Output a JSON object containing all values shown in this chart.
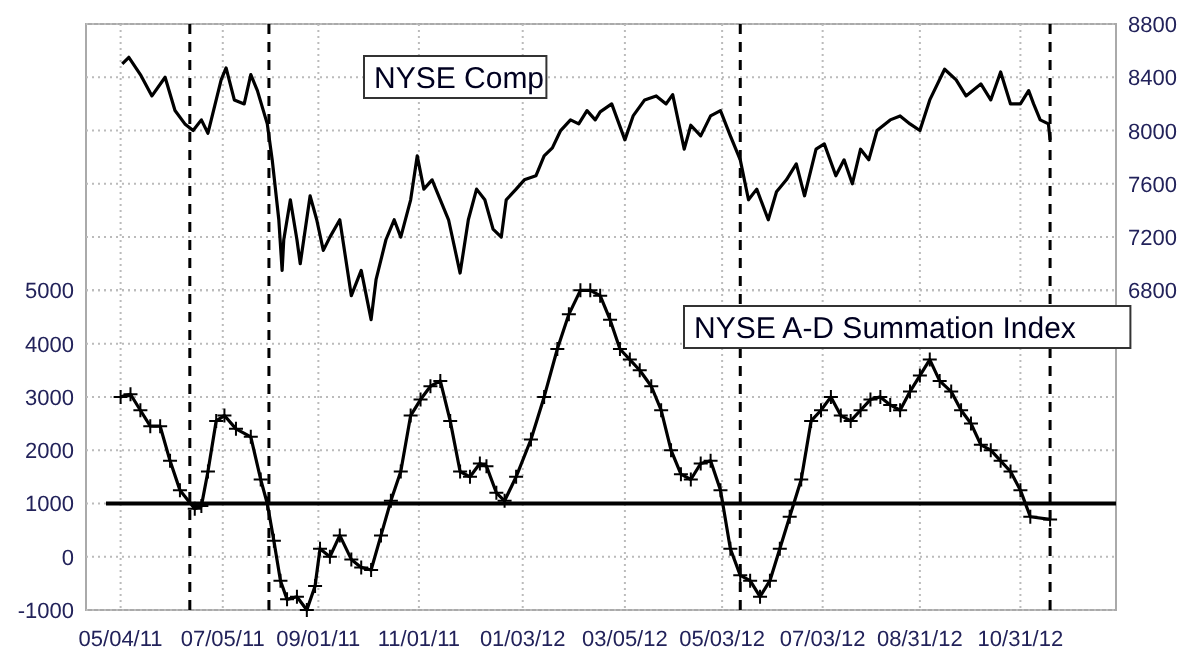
{
  "chart_data": {
    "type": "line",
    "grid": true,
    "xlim": [
      "2011-04-13",
      "2012-12-28"
    ],
    "xticks": [
      {
        "value": "2011-05-04",
        "label": "05/04/11"
      },
      {
        "value": "2011-07-05",
        "label": "07/05/11"
      },
      {
        "value": "2011-09-01",
        "label": "09/01/11"
      },
      {
        "value": "2011-11-01",
        "label": "11/01/11"
      },
      {
        "value": "2012-01-03",
        "label": "01/03/12"
      },
      {
        "value": "2012-03-05",
        "label": "03/05/12"
      },
      {
        "value": "2012-05-03",
        "label": "05/03/12"
      },
      {
        "value": "2012-07-03",
        "label": "07/03/12"
      },
      {
        "value": "2012-08-31",
        "label": "08/31/12"
      },
      {
        "value": "2012-10-31",
        "label": "10/31/12"
      }
    ],
    "ylim": [
      -1000,
      10000
    ],
    "yticks": [
      -1000,
      0,
      1000,
      2000,
      3000,
      4000,
      5000
    ],
    "y2lim": [
      4400,
      8800
    ],
    "y2ticks": [
      6800,
      7200,
      7600,
      8000,
      8400,
      8800
    ],
    "ref_lines": [
      {
        "axis": "y",
        "value": 1000,
        "color": "#000000",
        "line_style": "solid"
      },
      {
        "axis": "x",
        "value": "2011-06-15",
        "color": "#000000",
        "line_style": "dashed"
      },
      {
        "axis": "x",
        "value": "2011-08-02",
        "color": "#000000",
        "line_style": "dashed"
      },
      {
        "axis": "x",
        "value": "2012-05-14",
        "color": "#000000",
        "line_style": "dashed"
      },
      {
        "axis": "x",
        "value": "2012-11-18",
        "color": "#000000",
        "line_style": "dashed"
      }
    ],
    "series": [
      {
        "name": "NYSE Comp",
        "color": "#000000",
        "axis": "y2",
        "marker": "none",
        "line_style": "solid",
        "x": [
          "2011-05-05",
          "2011-05-09",
          "2011-05-16",
          "2011-05-23",
          "2011-05-31",
          "2011-06-06",
          "2011-06-12",
          "2011-06-17",
          "2011-06-22",
          "2011-06-26",
          "2011-07-04",
          "2011-07-07",
          "2011-07-12",
          "2011-07-18",
          "2011-07-22",
          "2011-07-26",
          "2011-08-01",
          "2011-08-04",
          "2011-08-08",
          "2011-08-10",
          "2011-08-11",
          "2011-08-15",
          "2011-08-19",
          "2011-08-21",
          "2011-08-27",
          "2011-08-31",
          "2011-09-04",
          "2011-09-08",
          "2011-09-14",
          "2011-09-21",
          "2011-09-27",
          "2011-10-03",
          "2011-10-06",
          "2011-10-12",
          "2011-10-17",
          "2011-10-21",
          "2011-10-27",
          "2011-10-31",
          "2011-11-04",
          "2011-11-09",
          "2011-11-14",
          "2011-11-19",
          "2011-11-26",
          "2011-12-01",
          "2011-12-06",
          "2011-12-11",
          "2011-12-16",
          "2011-12-21",
          "2011-12-24",
          "2011-12-30",
          "2012-01-04",
          "2012-01-11",
          "2012-01-16",
          "2012-01-21",
          "2012-01-26",
          "2012-02-01",
          "2012-02-06",
          "2012-02-11",
          "2012-02-16",
          "2012-02-19",
          "2012-02-26",
          "2012-03-05",
          "2012-03-10",
          "2012-03-17",
          "2012-03-24",
          "2012-03-30",
          "2012-04-03",
          "2012-04-10",
          "2012-04-14",
          "2012-04-20",
          "2012-04-26",
          "2012-05-02",
          "2012-05-08",
          "2012-05-14",
          "2012-05-19",
          "2012-05-24",
          "2012-05-31",
          "2012-06-05",
          "2012-06-11",
          "2012-06-17",
          "2012-06-22",
          "2012-06-29",
          "2012-07-04",
          "2012-07-11",
          "2012-07-16",
          "2012-07-21",
          "2012-07-26",
          "2012-07-31",
          "2012-08-05",
          "2012-08-13",
          "2012-08-19",
          "2012-08-25",
          "2012-08-31",
          "2012-09-06",
          "2012-09-15",
          "2012-09-22",
          "2012-09-28",
          "2012-10-07",
          "2012-10-13",
          "2012-10-19",
          "2012-10-25",
          "2012-10-31",
          "2012-11-05",
          "2012-11-08",
          "2012-11-12",
          "2012-11-17",
          "2012-11-18"
        ],
        "values": [
          8500,
          8550,
          8420,
          8260,
          8400,
          8150,
          8050,
          8000,
          8080,
          7980,
          8380,
          8470,
          8230,
          8200,
          8420,
          8300,
          8050,
          7780,
          7330,
          6950,
          7180,
          7480,
          7180,
          7000,
          7510,
          7330,
          7100,
          7200,
          7330,
          6760,
          6950,
          6580,
          6880,
          7180,
          7330,
          7200,
          7480,
          7810,
          7560,
          7630,
          7480,
          7330,
          6930,
          7330,
          7560,
          7480,
          7260,
          7200,
          7480,
          7560,
          7630,
          7660,
          7810,
          7870,
          8000,
          8080,
          8050,
          8150,
          8080,
          8140,
          8200,
          7930,
          8110,
          8230,
          8260,
          8200,
          8270,
          7860,
          8040,
          7960,
          8110,
          8150,
          7960,
          7780,
          7480,
          7560,
          7330,
          7540,
          7630,
          7750,
          7510,
          7860,
          7900,
          7660,
          7780,
          7600,
          7860,
          7780,
          8000,
          8080,
          8110,
          8050,
          8000,
          8230,
          8460,
          8380,
          8260,
          8350,
          8230,
          8440,
          8200,
          8200,
          8300,
          8200,
          8080,
          8050,
          7930
        ]
      },
      {
        "name": "NYSE A-D Summation Index",
        "color": "#000000",
        "marker": "cross",
        "line_style": "solid",
        "x": [
          "2011-05-04",
          "2011-05-10",
          "2011-05-16",
          "2011-05-22",
          "2011-05-28",
          "2011-06-03",
          "2011-06-09",
          "2011-06-18",
          "2011-06-22",
          "2011-06-26",
          "2011-07-01",
          "2011-07-06",
          "2011-07-13",
          "2011-07-22",
          "2011-07-28",
          "2011-08-01",
          "2011-08-05",
          "2011-08-09",
          "2011-08-13",
          "2011-08-19",
          "2011-08-25",
          "2011-08-30",
          "2011-09-02",
          "2011-09-08",
          "2011-09-14",
          "2011-09-21",
          "2011-09-27",
          "2011-10-03",
          "2011-10-09",
          "2011-10-15",
          "2011-10-21",
          "2011-10-27",
          "2011-11-02",
          "2011-11-08",
          "2011-11-14",
          "2011-11-20",
          "2011-11-26",
          "2011-12-02",
          "2011-12-08",
          "2011-12-12",
          "2011-12-18",
          "2011-12-23",
          "2011-12-30",
          "2012-01-08",
          "2012-01-16",
          "2012-01-24",
          "2012-01-31",
          "2012-02-07",
          "2012-02-13",
          "2012-02-19",
          "2012-02-25",
          "2012-03-02",
          "2012-03-08",
          "2012-03-14",
          "2012-03-21",
          "2012-03-27",
          "2012-04-02",
          "2012-04-08",
          "2012-04-14",
          "2012-04-20",
          "2012-04-26",
          "2012-05-02",
          "2012-05-08",
          "2012-05-14",
          "2012-05-20",
          "2012-05-26",
          "2012-06-01",
          "2012-06-07",
          "2012-06-13",
          "2012-06-20",
          "2012-06-26",
          "2012-07-02",
          "2012-07-08",
          "2012-07-14",
          "2012-07-20",
          "2012-07-26",
          "2012-08-01",
          "2012-08-07",
          "2012-08-13",
          "2012-08-19",
          "2012-08-25",
          "2012-08-31",
          "2012-09-06",
          "2012-09-12",
          "2012-09-19",
          "2012-09-25",
          "2012-10-01",
          "2012-10-07",
          "2012-10-13",
          "2012-10-19",
          "2012-10-25",
          "2012-10-31",
          "2012-11-06",
          "2012-11-18"
        ],
        "values": [
          3000,
          3050,
          2750,
          2450,
          2450,
          1800,
          1250,
          900,
          950,
          1600,
          2550,
          2650,
          2400,
          2250,
          1450,
          1000,
          300,
          -450,
          -800,
          -750,
          -1000,
          -550,
          150,
          0,
          400,
          -50,
          -200,
          -250,
          400,
          1050,
          1600,
          2650,
          2950,
          3200,
          3300,
          2550,
          1600,
          1500,
          1750,
          1700,
          1200,
          1050,
          1500,
          2200,
          3000,
          3900,
          4550,
          5000,
          5000,
          4900,
          4450,
          3900,
          3700,
          3500,
          3200,
          2750,
          2000,
          1550,
          1450,
          1750,
          1800,
          1250,
          150,
          -350,
          -450,
          -750,
          -450,
          150,
          750,
          1450,
          2550,
          2750,
          3000,
          2650,
          2550,
          2750,
          2950,
          3000,
          2850,
          2750,
          3100,
          3400,
          3700,
          3300,
          3100,
          2750,
          2500,
          2100,
          2000,
          1800,
          1600,
          1250,
          750,
          700
        ]
      }
    ]
  }
}
